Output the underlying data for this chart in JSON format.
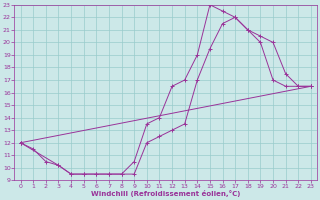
{
  "xlabel": "Windchill (Refroidissement éolien,°C)",
  "bg_color": "#cce8e8",
  "grid_color": "#99cccc",
  "line_color": "#993399",
  "xlim": [
    -0.5,
    23.5
  ],
  "ylim": [
    9,
    23
  ],
  "xticks": [
    0,
    1,
    2,
    3,
    4,
    5,
    6,
    7,
    8,
    9,
    10,
    11,
    12,
    13,
    14,
    15,
    16,
    17,
    18,
    19,
    20,
    21,
    22,
    23
  ],
  "yticks": [
    9,
    10,
    11,
    12,
    13,
    14,
    15,
    16,
    17,
    18,
    19,
    20,
    21,
    22,
    23
  ],
  "curve1_x": [
    0,
    1,
    2,
    3,
    4,
    5,
    6,
    7,
    8,
    9,
    10,
    11,
    12,
    13,
    14,
    15,
    16,
    17,
    18,
    19,
    20,
    21,
    22,
    23
  ],
  "curve1_y": [
    12,
    11.5,
    10.5,
    10.2,
    9.5,
    9.5,
    9.5,
    9.5,
    9.5,
    10.5,
    13.5,
    14.0,
    16.5,
    17.0,
    19.0,
    23.0,
    22.5,
    22.0,
    21.0,
    20.0,
    17.0,
    16.5,
    16.5,
    16.5
  ],
  "curve2_x": [
    0,
    3,
    4,
    5,
    6,
    7,
    8,
    9,
    10,
    11,
    12,
    13,
    14,
    15,
    16,
    17,
    18,
    19,
    20,
    21,
    22,
    23
  ],
  "curve2_y": [
    12,
    10.2,
    9.5,
    9.5,
    9.5,
    9.5,
    9.5,
    9.5,
    12.0,
    12.5,
    13.0,
    13.5,
    17.0,
    19.5,
    21.5,
    22.0,
    21.0,
    20.5,
    20.0,
    17.5,
    16.5,
    16.5
  ],
  "curve3_x": [
    0,
    23
  ],
  "curve3_y": [
    12,
    16.5
  ]
}
